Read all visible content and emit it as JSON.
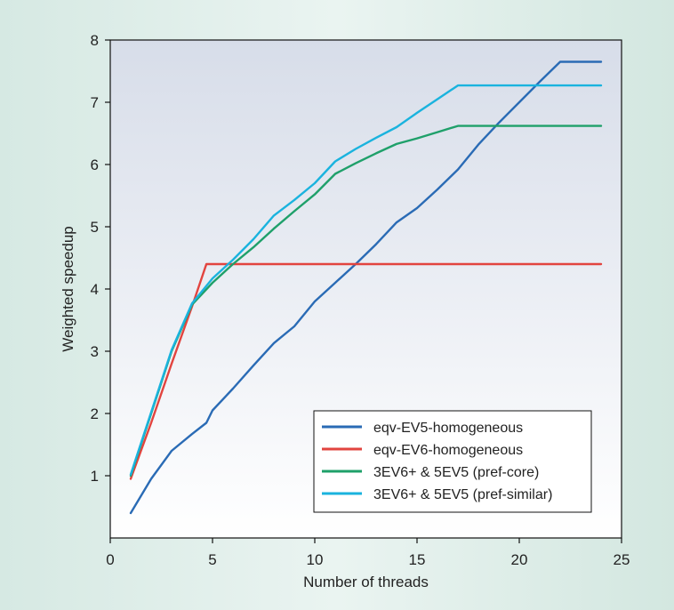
{
  "chart_data": {
    "type": "line",
    "title": "",
    "xlabel": "Number of threads",
    "ylabel": "Weighted speedup",
    "xlim": [
      0,
      25
    ],
    "ylim": [
      0,
      8
    ],
    "xticks": [
      0,
      5,
      10,
      15,
      20,
      25
    ],
    "yticks": [
      1,
      2,
      3,
      4,
      5,
      6,
      7,
      8
    ],
    "grid": false,
    "legend_position": "bottom-right",
    "series": [
      {
        "name": "eqv-EV5-homogeneous",
        "color": "#2a6bb5",
        "x": [
          1,
          2,
          3,
          4,
          4.7,
          5,
          6,
          7,
          8,
          9,
          10,
          11,
          12,
          13,
          14,
          15,
          16,
          17,
          18,
          19,
          20,
          21,
          22,
          23,
          24
        ],
        "y": [
          0.4,
          0.95,
          1.4,
          1.67,
          1.85,
          2.05,
          2.4,
          2.77,
          3.13,
          3.4,
          3.8,
          4.1,
          4.4,
          4.72,
          5.07,
          5.3,
          5.6,
          5.92,
          6.32,
          6.67,
          7.0,
          7.33,
          7.65,
          7.65,
          7.65
        ]
      },
      {
        "name": "eqv-EV6-homogeneous",
        "color": "#e2443f",
        "x": [
          1,
          2,
          3,
          4,
          4.7,
          5,
          10,
          15,
          20,
          24
        ],
        "y": [
          0.95,
          1.85,
          2.8,
          3.72,
          4.4,
          4.4,
          4.4,
          4.4,
          4.4,
          4.4
        ]
      },
      {
        "name": "3EV6+ & 5EV5 (pref-core)",
        "color": "#1fa06a",
        "x": [
          1,
          2,
          3,
          4,
          5,
          6,
          7,
          8,
          9,
          10,
          11,
          12,
          13,
          14,
          15,
          16,
          17,
          18,
          19,
          20,
          21,
          22,
          23,
          24
        ],
        "y": [
          1.0,
          2.0,
          3.0,
          3.75,
          4.1,
          4.4,
          4.67,
          4.97,
          5.25,
          5.52,
          5.85,
          6.02,
          6.18,
          6.33,
          6.42,
          6.52,
          6.62,
          6.62,
          6.62,
          6.62,
          6.62,
          6.62,
          6.62,
          6.62
        ]
      },
      {
        "name": "3EV6+ & 5EV5 (pref-similar)",
        "color": "#1ab3de",
        "x": [
          1,
          2,
          3,
          4,
          5,
          6,
          7,
          8,
          9,
          10,
          11,
          12,
          13,
          14,
          15,
          16,
          17,
          18,
          19,
          20,
          21,
          22,
          23,
          24
        ],
        "y": [
          1.02,
          2.02,
          3.02,
          3.77,
          4.17,
          4.47,
          4.8,
          5.18,
          5.43,
          5.7,
          6.05,
          6.25,
          6.43,
          6.6,
          6.83,
          7.05,
          7.27,
          7.27,
          7.27,
          7.27,
          7.27,
          7.27,
          7.27,
          7.27
        ]
      }
    ]
  }
}
